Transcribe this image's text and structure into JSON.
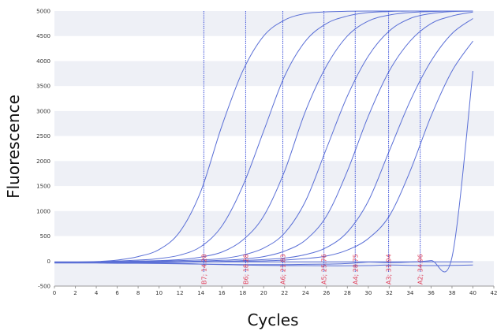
{
  "chart_data": {
    "type": "line",
    "xlabel": "Cycles",
    "ylabel": "Fluorescence",
    "xlim": [
      0,
      42
    ],
    "ylim": [
      -500,
      5000
    ],
    "x_ticks": [
      "0",
      "2",
      "4",
      "6",
      "8",
      "10",
      "12",
      "14",
      "16",
      "18",
      "20",
      "22",
      "24",
      "26",
      "28",
      "30",
      "32",
      "34",
      "36",
      "38",
      "40",
      "42"
    ],
    "y_ticks": [
      "-500",
      "0",
      "500",
      "1000",
      "1500",
      "2000",
      "2500",
      "3000",
      "3500",
      "4000",
      "4500",
      "5000"
    ],
    "grid": "horizontal alternating bands",
    "series": [
      {
        "x": [
          0,
          2,
          4,
          6,
          8,
          10,
          12,
          14,
          16,
          18,
          20,
          22,
          24,
          26,
          28,
          30,
          32,
          34,
          36,
          38,
          40
        ],
        "y": [
          -30,
          -20,
          -10,
          20,
          90,
          230,
          590,
          1400,
          2700,
          3800,
          4500,
          4820,
          4950,
          4985,
          4995,
          5000,
          5000,
          5000,
          5000,
          5000,
          5000
        ]
      },
      {
        "x": [
          0,
          2,
          4,
          6,
          8,
          10,
          12,
          14,
          16,
          18,
          20,
          22,
          24,
          26,
          28,
          30,
          32,
          34,
          36,
          38,
          40
        ],
        "y": [
          -30,
          -25,
          -15,
          0,
          20,
          50,
          120,
          290,
          700,
          1500,
          2600,
          3700,
          4400,
          4750,
          4900,
          4970,
          4990,
          5000,
          5000,
          5000,
          5000
        ]
      },
      {
        "x": [
          0,
          2,
          4,
          6,
          8,
          10,
          12,
          14,
          16,
          18,
          20,
          22,
          24,
          26,
          28,
          30,
          32,
          34,
          36,
          38,
          40
        ],
        "y": [
          -30,
          -25,
          -20,
          -10,
          0,
          10,
          30,
          80,
          180,
          420,
          900,
          1800,
          3000,
          3900,
          4500,
          4800,
          4920,
          4970,
          4990,
          5000,
          5000
        ]
      },
      {
        "x": [
          0,
          2,
          4,
          6,
          8,
          10,
          12,
          14,
          16,
          18,
          20,
          22,
          24,
          26,
          28,
          30,
          32,
          34,
          36,
          38,
          40
        ],
        "y": [
          -30,
          -30,
          -25,
          -20,
          -10,
          0,
          10,
          25,
          50,
          120,
          260,
          560,
          1200,
          2250,
          3300,
          4100,
          4600,
          4850,
          4950,
          4990,
          5000
        ]
      },
      {
        "x": [
          0,
          2,
          4,
          6,
          8,
          10,
          12,
          14,
          16,
          18,
          20,
          22,
          24,
          26,
          28,
          30,
          32,
          34,
          36,
          38,
          40
        ],
        "y": [
          -30,
          -30,
          -30,
          -25,
          -20,
          -15,
          -10,
          0,
          15,
          40,
          90,
          200,
          420,
          900,
          1800,
          2900,
          3800,
          4400,
          4750,
          4900,
          4980
        ]
      },
      {
        "x": [
          0,
          2,
          4,
          6,
          8,
          10,
          12,
          14,
          16,
          18,
          20,
          22,
          24,
          26,
          28,
          30,
          32,
          34,
          36,
          38,
          40
        ],
        "y": [
          -30,
          -30,
          -30,
          -30,
          -25,
          -20,
          -15,
          -10,
          -5,
          10,
          30,
          60,
          130,
          270,
          580,
          1200,
          2200,
          3200,
          4000,
          4550,
          4850
        ]
      },
      {
        "x": [
          0,
          2,
          4,
          6,
          8,
          10,
          12,
          14,
          16,
          18,
          20,
          22,
          24,
          26,
          28,
          30,
          32,
          34,
          36,
          38,
          40
        ],
        "y": [
          -30,
          -30,
          -30,
          -30,
          -30,
          -25,
          -20,
          -15,
          -10,
          -5,
          5,
          20,
          50,
          100,
          220,
          450,
          900,
          1800,
          2900,
          3800,
          4400
        ]
      },
      {
        "x": [
          0,
          2,
          4,
          6,
          8,
          10,
          12,
          14,
          16,
          18,
          20,
          22,
          24,
          26,
          28,
          30,
          32,
          34,
          36,
          38,
          40
        ],
        "y": [
          -40,
          -40,
          -40,
          -45,
          -45,
          -50,
          -55,
          -60,
          -65,
          -70,
          -70,
          -70,
          -65,
          -60,
          -50,
          -20,
          -30,
          -20,
          10,
          80,
          3800
        ]
      },
      {
        "x": [
          0,
          2,
          4,
          6,
          8,
          10,
          12,
          14,
          16,
          18,
          20,
          22,
          24,
          26,
          28,
          30,
          32,
          34,
          36,
          38,
          40
        ],
        "y": [
          -20,
          -25,
          -30,
          -30,
          -35,
          -40,
          -45,
          -60,
          -70,
          -80,
          -85,
          -90,
          -90,
          -95,
          -95,
          -90,
          -80,
          -85,
          -90,
          -85,
          -80
        ]
      },
      {
        "x": [
          0,
          40
        ],
        "y": [
          -15,
          -15
        ]
      }
    ],
    "thresholds": [
      {
        "x": 14.28,
        "label": "B7; 14.28"
      },
      {
        "x": 18.28,
        "label": "B6; 18.28"
      },
      {
        "x": 21.83,
        "label": "A6; 21.83"
      },
      {
        "x": 25.76,
        "label": "A5; 25.76"
      },
      {
        "x": 28.75,
        "label": "A4; 28.75"
      },
      {
        "x": 31.94,
        "label": "A3; 31.94"
      },
      {
        "x": 34.96,
        "label": "A2; 34.96"
      }
    ],
    "colors": {
      "line": "#5a6fd6",
      "threshold": "#3a4fd8",
      "label": "#e0405a",
      "band": "#eef0f6"
    }
  }
}
